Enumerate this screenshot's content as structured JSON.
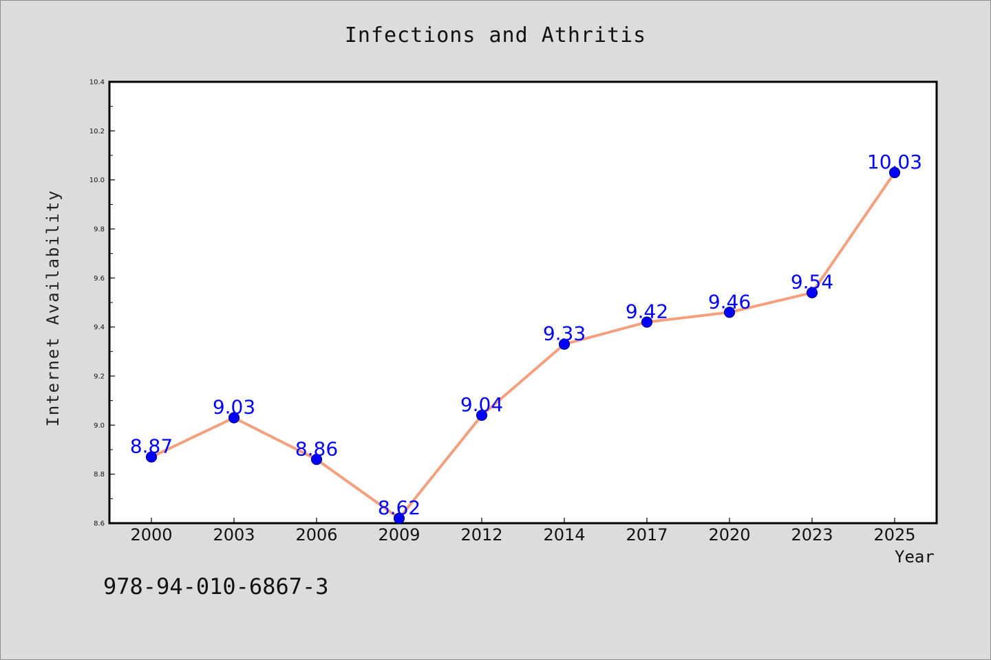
{
  "chart_data": {
    "type": "line",
    "title": "Infections and Athritis",
    "xlabel": "Year",
    "ylabel": "Internet Availability",
    "categories": [
      "2000",
      "2003",
      "2006",
      "2009",
      "2012",
      "2014",
      "2017",
      "2020",
      "2023",
      "2025"
    ],
    "series": [
      {
        "values": [
          8.87,
          9.03,
          8.86,
          8.62,
          9.04,
          9.33,
          9.42,
          9.46,
          9.54,
          10.03
        ],
        "data_labels": [
          "8.87",
          "9.03",
          "8.86",
          "8.62",
          "9.04",
          "9.33",
          "9.42",
          "9.46",
          "9.54",
          "10.03"
        ],
        "line_color": "#f4a07e",
        "marker_color": "#0000ff"
      }
    ],
    "ylim": [
      8.6,
      10.4
    ],
    "yticks": [
      "8.6",
      "8.8",
      "9.0",
      "9.2",
      "9.4",
      "9.6",
      "9.8",
      "10.0",
      "10.2",
      "10.4"
    ],
    "grid": false,
    "label_color": "#0000ff"
  },
  "caption": "978-94-010-6867-3",
  "colors": {
    "background": "#dcdcdc",
    "plot_background": "#ffffff",
    "axes": "#000000"
  }
}
